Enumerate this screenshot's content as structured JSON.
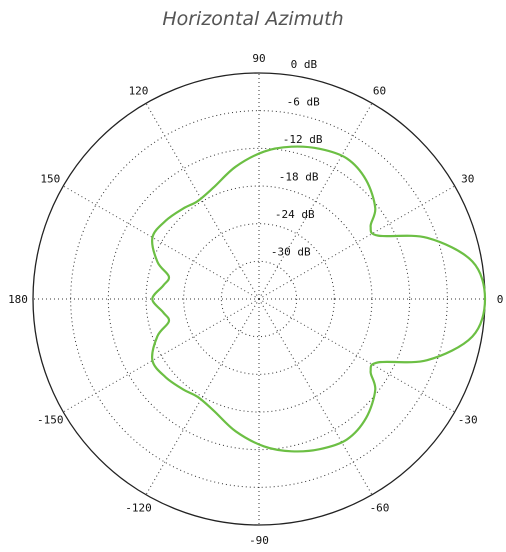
{
  "title": "Horizontal Azimuth",
  "chart_data": {
    "type": "polar",
    "title": "Horizontal Azimuth",
    "radial_axis": {
      "min_db": -36,
      "max_db": 0,
      "ring_labels": [
        "0 dB",
        "-6 dB",
        "-12 dB",
        "-18 dB",
        "-24 dB",
        "-30 dB"
      ],
      "ring_values": [
        0,
        -6,
        -12,
        -18,
        -24,
        -30
      ]
    },
    "angular_axis": {
      "ticks": [
        0,
        30,
        60,
        90,
        120,
        150,
        180,
        -150,
        -120,
        -90,
        -60,
        -30
      ],
      "tick_labels": [
        "0",
        "30",
        "60",
        "90",
        "120",
        "150",
        "180",
        "-150",
        "-120",
        "-90",
        "-60",
        "-30"
      ],
      "spoke_step_deg": 30
    },
    "grid": true,
    "series": [
      {
        "color": "#6cbf44",
        "points_deg_db": [
          [
            0,
            0
          ],
          [
            10,
            -1.5
          ],
          [
            20,
            -7.5
          ],
          [
            28,
            -14.5
          ],
          [
            33,
            -14.8
          ],
          [
            38,
            -12.5
          ],
          [
            48,
            -10.5
          ],
          [
            58,
            -9.6
          ],
          [
            68,
            -10.2
          ],
          [
            78,
            -11.2
          ],
          [
            88,
            -12.5
          ],
          [
            100,
            -14.6
          ],
          [
            112,
            -16.8
          ],
          [
            122,
            -17.6
          ],
          [
            130,
            -17.2
          ],
          [
            140,
            -16.6
          ],
          [
            150,
            -16.4
          ],
          [
            160,
            -18.8
          ],
          [
            166,
            -21.2
          ],
          [
            172,
            -20.6
          ],
          [
            180,
            -19.0
          ],
          [
            188,
            -20.6
          ],
          [
            194,
            -21.2
          ],
          [
            200,
            -18.8
          ],
          [
            210,
            -16.4
          ],
          [
            220,
            -16.6
          ],
          [
            230,
            -17.2
          ],
          [
            238,
            -17.6
          ],
          [
            248,
            -16.8
          ],
          [
            260,
            -14.6
          ],
          [
            272,
            -12.5
          ],
          [
            282,
            -11.2
          ],
          [
            292,
            -10.2
          ],
          [
            302,
            -9.6
          ],
          [
            312,
            -10.5
          ],
          [
            322,
            -12.5
          ],
          [
            327,
            -14.8
          ],
          [
            332,
            -14.5
          ],
          [
            340,
            -7.5
          ],
          [
            350,
            -1.5
          ],
          [
            360,
            0
          ]
        ]
      }
    ]
  }
}
